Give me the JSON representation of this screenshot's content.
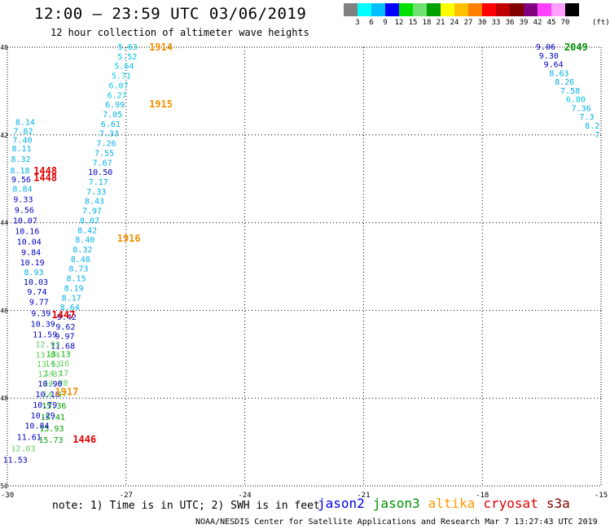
{
  "title": "12:00 – 23:59 UTC 03/06/2019",
  "subtitle": "12 hour collection of altimeter wave heights",
  "colorbar": {
    "colors": [
      "#808080",
      "#00ffff",
      "#00bfff",
      "#0000ff",
      "#00e000",
      "#70e070",
      "#00a000",
      "#ffff00",
      "#ffc000",
      "#ff8000",
      "#ff0000",
      "#c00000",
      "#800000",
      "#800080",
      "#ff40ff",
      "#ffa0ff",
      "#000000"
    ],
    "labels": [
      "3",
      "6",
      "9",
      "12",
      "15",
      "18",
      "21",
      "24",
      "27",
      "30",
      "33",
      "36",
      "39",
      "42",
      "45",
      "70"
    ],
    "unit": "(ft)"
  },
  "footer_note": "note: 1) Time is in UTC; 2) SWH is in feet",
  "legend": [
    {
      "name": "jason2",
      "color": "#0000e0"
    },
    {
      "name": "jason3",
      "color": "#009000"
    },
    {
      "name": "altika",
      "color": "#ff9900"
    },
    {
      "name": "cryosat",
      "color": "#e00000"
    },
    {
      "name": "s3a",
      "color": "#800000"
    }
  ],
  "credit": "NOAA/NESDIS Center for Satellite Applications and Research    Mar  7 13:27:43 UTC 2019",
  "chart_data": {
    "type": "scatter",
    "xlabel": "",
    "ylabel": "",
    "xlim": [
      -30,
      -15
    ],
    "ylim": [
      -50,
      -40
    ],
    "x_ticks": [
      -30,
      -27,
      -24,
      -21,
      -18,
      -15
    ],
    "x_tick_labels": [
      "-30",
      "-27",
      "-24",
      "-21",
      "-18",
      "-15"
    ],
    "y_ticks": [
      -40,
      -42,
      -44,
      -46,
      -48,
      -50
    ],
    "y_tick_labels": [
      "-40",
      "-42",
      "-44",
      "-46",
      "-48",
      "-50"
    ],
    "grid": true,
    "points": [
      {
        "x": -26.96,
        "y": -40.0,
        "v": "5.63",
        "c": "#00c8e8"
      },
      {
        "x": -26.97,
        "y": -40.22,
        "v": "5.52",
        "c": "#00c8e8"
      },
      {
        "x": -27.05,
        "y": -40.44,
        "v": "5.64",
        "c": "#00c8e8"
      },
      {
        "x": -27.12,
        "y": -40.66,
        "v": "5.71",
        "c": "#00c8e8"
      },
      {
        "x": -27.19,
        "y": -40.88,
        "v": "6.07",
        "c": "#00c8e8"
      },
      {
        "x": -27.23,
        "y": -41.1,
        "v": "6.27",
        "c": "#00c8e8"
      },
      {
        "x": -27.28,
        "y": -41.32,
        "v": "6.99",
        "c": "#00b0e8"
      },
      {
        "x": -27.34,
        "y": -41.54,
        "v": "7.05",
        "c": "#00b0e8"
      },
      {
        "x": -27.39,
        "y": -41.76,
        "v": "6.61",
        "c": "#00b0e8"
      },
      {
        "x": -27.43,
        "y": -41.98,
        "v": "7.33",
        "c": "#00b0e8"
      },
      {
        "x": -27.5,
        "y": -42.2,
        "v": "7.26",
        "c": "#00b0e8"
      },
      {
        "x": -27.55,
        "y": -42.42,
        "v": "7.55",
        "c": "#00b0e8"
      },
      {
        "x": -27.6,
        "y": -42.64,
        "v": "7.67",
        "c": "#00b0e8"
      },
      {
        "x": -27.65,
        "y": -42.86,
        "v": "10.50",
        "c": "#0000c0"
      },
      {
        "x": -27.7,
        "y": -43.08,
        "v": "7.17",
        "c": "#00b0e8"
      },
      {
        "x": -27.75,
        "y": -43.3,
        "v": "7.33",
        "c": "#00b0e8"
      },
      {
        "x": -27.8,
        "y": -43.52,
        "v": "8.43",
        "c": "#00b0e8"
      },
      {
        "x": -27.86,
        "y": -43.74,
        "v": "7.97",
        "c": "#00b0e8"
      },
      {
        "x": -27.92,
        "y": -43.96,
        "v": "8.07",
        "c": "#00b0e8"
      },
      {
        "x": -27.98,
        "y": -44.18,
        "v": "8.42",
        "c": "#00b0e8"
      },
      {
        "x": -28.04,
        "y": -44.4,
        "v": "8.40",
        "c": "#00b0e8"
      },
      {
        "x": -28.1,
        "y": -44.62,
        "v": "8.32",
        "c": "#00b0e8"
      },
      {
        "x": -28.15,
        "y": -44.84,
        "v": "8.48",
        "c": "#00b0e8"
      },
      {
        "x": -28.2,
        "y": -45.06,
        "v": "8.73",
        "c": "#00b0e8"
      },
      {
        "x": -28.26,
        "y": -45.28,
        "v": "8.15",
        "c": "#00b0e8"
      },
      {
        "x": -28.32,
        "y": -45.5,
        "v": "8.19",
        "c": "#00b0e8"
      },
      {
        "x": -28.38,
        "y": -45.72,
        "v": "8.17",
        "c": "#00b0e8"
      },
      {
        "x": -28.42,
        "y": -45.94,
        "v": "8.64",
        "c": "#00b0e8"
      },
      {
        "x": -28.5,
        "y": -46.16,
        "v": "9.42",
        "c": "#0000c0"
      },
      {
        "x": -28.53,
        "y": -46.38,
        "v": "9.62",
        "c": "#0000c0"
      },
      {
        "x": -28.55,
        "y": -46.6,
        "v": "9.97",
        "c": "#0000c0"
      },
      {
        "x": -28.6,
        "y": -46.82,
        "v": "11.68",
        "c": "#0000c0"
      },
      {
        "x": -28.71,
        "y": -47.0,
        "v": "13.13",
        "c": "#00b000"
      },
      {
        "x": -28.74,
        "y": -47.22,
        "v": "14.16",
        "c": "#60d060"
      },
      {
        "x": -28.76,
        "y": -47.44,
        "v": "14.17",
        "c": "#60d060"
      },
      {
        "x": -28.78,
        "y": -47.66,
        "v": "14.98",
        "c": "#60d060"
      },
      {
        "x": -28.8,
        "y": -47.92,
        "v": "14.47",
        "c": "#60d060"
      },
      {
        "x": -28.82,
        "y": -48.18,
        "v": "15.36",
        "c": "#00a000"
      },
      {
        "x": -28.85,
        "y": -48.44,
        "v": "15.41",
        "c": "#00a000"
      },
      {
        "x": -28.88,
        "y": -48.7,
        "v": "15.93",
        "c": "#00a000"
      },
      {
        "x": -28.9,
        "y": -48.96,
        "v": "15.73",
        "c": "#00a000"
      },
      {
        "x": -29.55,
        "y": -41.72,
        "v": "8.14",
        "c": "#00b0e8"
      },
      {
        "x": -29.6,
        "y": -41.92,
        "v": "7.82",
        "c": "#00b0e8"
      },
      {
        "x": -29.62,
        "y": -42.12,
        "v": "7.40",
        "c": "#00b0e8"
      },
      {
        "x": -29.64,
        "y": -42.32,
        "v": "8.11",
        "c": "#00b0e8"
      },
      {
        "x": -29.66,
        "y": -42.56,
        "v": "8.32",
        "c": "#00b0e8"
      },
      {
        "x": -29.68,
        "y": -42.82,
        "v": "8.18",
        "c": "#00b0e8"
      },
      {
        "x": -29.65,
        "y": -43.02,
        "v": "9.56",
        "c": "#0000c0"
      },
      {
        "x": -29.62,
        "y": -43.24,
        "v": "8.84",
        "c": "#00b0e8"
      },
      {
        "x": -29.6,
        "y": -43.48,
        "v": "9.33",
        "c": "#0000c0"
      },
      {
        "x": -29.57,
        "y": -43.72,
        "v": "9.56",
        "c": "#0000c0"
      },
      {
        "x": -29.55,
        "y": -43.96,
        "v": "10.07",
        "c": "#0000c0"
      },
      {
        "x": -29.5,
        "y": -44.2,
        "v": "10.16",
        "c": "#0000c0"
      },
      {
        "x": -29.45,
        "y": -44.44,
        "v": "10.04",
        "c": "#0000c0"
      },
      {
        "x": -29.4,
        "y": -44.68,
        "v": "9.84",
        "c": "#0000c0"
      },
      {
        "x": -29.37,
        "y": -44.92,
        "v": "10.19",
        "c": "#0000c0"
      },
      {
        "x": -29.33,
        "y": -45.14,
        "v": "8.93",
        "c": "#00b0e8"
      },
      {
        "x": -29.28,
        "y": -45.36,
        "v": "10.03",
        "c": "#0000c0"
      },
      {
        "x": -29.25,
        "y": -45.58,
        "v": "9.74",
        "c": "#0000c0"
      },
      {
        "x": -29.2,
        "y": -45.82,
        "v": "9.77",
        "c": "#0000c0"
      },
      {
        "x": -29.15,
        "y": -46.08,
        "v": "9.39",
        "c": "#0000c0"
      },
      {
        "x": -29.1,
        "y": -46.32,
        "v": "10.39",
        "c": "#0000c0"
      },
      {
        "x": -29.05,
        "y": -46.56,
        "v": "11.59",
        "c": "#0000c0"
      },
      {
        "x": -28.98,
        "y": -46.78,
        "v": "12.93",
        "c": "#60d060"
      },
      {
        "x": -28.98,
        "y": -47.02,
        "v": "13.64",
        "c": "#60d060"
      },
      {
        "x": -28.95,
        "y": -47.24,
        "v": "13.53",
        "c": "#60d060"
      },
      {
        "x": -28.92,
        "y": -47.46,
        "v": "12.87",
        "c": "#60d060"
      },
      {
        "x": -28.92,
        "y": -47.68,
        "v": "10.90",
        "c": "#0000c0"
      },
      {
        "x": -28.98,
        "y": -47.92,
        "v": "10.16",
        "c": "#0000c0"
      },
      {
        "x": -29.05,
        "y": -48.16,
        "v": "10.79",
        "c": "#0000c0"
      },
      {
        "x": -29.1,
        "y": -48.4,
        "v": "10.29",
        "c": "#0000c0"
      },
      {
        "x": -29.25,
        "y": -48.64,
        "v": "10.84",
        "c": "#0000c0"
      },
      {
        "x": -29.45,
        "y": -48.9,
        "v": "11.61",
        "c": "#0000c0"
      },
      {
        "x": -29.6,
        "y": -49.16,
        "v": "12.03",
        "c": "#60d060"
      },
      {
        "x": -29.8,
        "y": -49.42,
        "v": "11.53",
        "c": "#0000c0"
      },
      {
        "x": -16.4,
        "y": -40.0,
        "v": "9.06",
        "c": "#0000c0"
      },
      {
        "x": -16.32,
        "y": -40.2,
        "v": "9.30",
        "c": "#0000c0"
      },
      {
        "x": -16.2,
        "y": -40.4,
        "v": "9.64",
        "c": "#0000c0"
      },
      {
        "x": -16.06,
        "y": -40.6,
        "v": "8.63",
        "c": "#00b0e8"
      },
      {
        "x": -15.92,
        "y": -40.8,
        "v": "8.26",
        "c": "#00b0e8"
      },
      {
        "x": -15.78,
        "y": -41.0,
        "v": "7.58",
        "c": "#00b0e8"
      },
      {
        "x": -15.64,
        "y": -41.2,
        "v": "6.80",
        "c": "#00c8e8"
      },
      {
        "x": -15.5,
        "y": -41.4,
        "v": "7.36",
        "c": "#00b0e8"
      },
      {
        "x": -15.36,
        "y": -41.6,
        "v": "7.3",
        "c": "#00b0e8"
      },
      {
        "x": -15.22,
        "y": -41.8,
        "v": "8.2",
        "c": "#00b0e8"
      },
      {
        "x": -15.1,
        "y": -42.0,
        "v": "7",
        "c": "#00b0e8"
      }
    ],
    "time_labels": [
      {
        "x": -26.12,
        "y": -40.0,
        "t": "1914",
        "c": "#f09000"
      },
      {
        "x": -26.12,
        "y": -41.3,
        "t": "1915",
        "c": "#f09000"
      },
      {
        "x": -26.93,
        "y": -44.36,
        "t": "1916",
        "c": "#f09000"
      },
      {
        "x": -28.5,
        "y": -47.86,
        "t": "1917",
        "c": "#f09000"
      },
      {
        "x": -29.04,
        "y": -42.82,
        "t": "1448",
        "c": "#e00000"
      },
      {
        "x": -29.04,
        "y": -42.98,
        "t": "1448",
        "c": "#e00000"
      },
      {
        "x": -28.58,
        "y": -46.1,
        "t": "1447",
        "c": "#e00000"
      },
      {
        "x": -28.05,
        "y": -48.94,
        "t": "1446",
        "c": "#e00000"
      },
      {
        "x": -15.63,
        "y": -40.0,
        "t": "2049",
        "c": "#009000"
      }
    ]
  }
}
